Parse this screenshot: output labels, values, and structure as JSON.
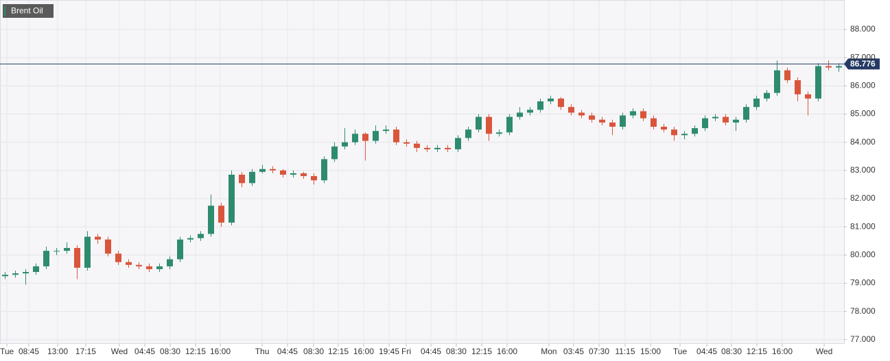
{
  "chart_data": {
    "type": "candlestick",
    "title": "Brent Oil",
    "open": [
      79.25,
      79.3,
      79.35,
      79.4,
      79.6,
      80.15,
      80.15,
      80.25,
      79.55,
      80.65,
      80.55,
      80.05,
      79.75,
      79.65,
      79.6,
      79.5,
      79.6,
      79.85,
      80.55,
      80.6,
      80.75,
      81.75,
      81.15,
      82.85,
      82.55,
      82.95,
      83.05,
      83.0,
      82.85,
      82.9,
      82.8,
      82.65,
      83.4,
      83.85,
      84.0,
      84.3,
      84.05,
      84.4,
      84.45,
      84.0,
      83.95,
      83.8,
      83.75,
      83.8,
      83.75,
      84.15,
      84.45,
      84.9,
      84.3,
      84.35,
      84.9,
      85.05,
      85.15,
      85.45,
      85.55,
      85.25,
      85.05,
      84.95,
      84.8,
      84.7,
      84.55,
      84.95,
      85.1,
      84.85,
      84.55,
      84.45,
      84.25,
      84.3,
      84.5,
      84.85,
      84.9,
      84.7,
      84.8,
      85.25,
      85.55,
      85.75,
      86.55,
      86.2,
      85.7,
      85.55,
      86.7,
      86.65
    ],
    "high": [
      79.4,
      79.45,
      79.5,
      79.7,
      80.3,
      80.25,
      80.45,
      80.35,
      80.85,
      80.75,
      80.65,
      80.15,
      79.85,
      79.75,
      79.7,
      79.7,
      79.95,
      80.65,
      80.7,
      80.85,
      82.15,
      81.85,
      83.0,
      82.95,
      83.05,
      83.2,
      83.15,
      83.05,
      83.0,
      82.95,
      82.9,
      83.5,
      84.0,
      84.5,
      84.45,
      84.35,
      84.6,
      84.6,
      84.55,
      84.1,
      84.05,
      83.9,
      83.9,
      83.9,
      84.25,
      84.55,
      85.0,
      85.0,
      84.45,
      85.0,
      85.25,
      85.25,
      85.55,
      85.65,
      85.6,
      85.35,
      85.15,
      85.05,
      84.9,
      84.8,
      85.05,
      85.2,
      85.2,
      84.95,
      84.65,
      84.55,
      84.4,
      84.6,
      84.95,
      85.0,
      85.0,
      84.9,
      85.35,
      85.65,
      85.85,
      86.9,
      86.65,
      86.3,
      85.8,
      86.8,
      86.9,
      86.8
    ],
    "low": [
      79.15,
      79.2,
      78.95,
      79.3,
      79.5,
      80.0,
      80.05,
      79.15,
      79.45,
      80.4,
      79.95,
      79.65,
      79.55,
      79.5,
      79.4,
      79.4,
      79.5,
      79.75,
      80.45,
      80.5,
      80.65,
      81.0,
      81.05,
      82.4,
      82.45,
      82.9,
      82.9,
      82.75,
      82.75,
      82.7,
      82.5,
      82.55,
      83.3,
      83.75,
      83.9,
      83.35,
      83.95,
      84.3,
      83.9,
      83.85,
      83.65,
      83.65,
      83.65,
      83.65,
      83.65,
      84.05,
      84.35,
      84.05,
      84.2,
      84.25,
      84.8,
      84.95,
      85.05,
      85.35,
      85.15,
      84.95,
      84.85,
      84.7,
      84.6,
      84.25,
      84.45,
      84.85,
      84.75,
      84.45,
      84.35,
      84.05,
      84.1,
      84.2,
      84.4,
      84.75,
      84.6,
      84.4,
      84.7,
      85.15,
      85.45,
      85.65,
      86.1,
      85.45,
      84.95,
      85.45,
      86.55,
      86.5
    ],
    "close": [
      79.3,
      79.35,
      79.4,
      79.6,
      80.15,
      80.15,
      80.25,
      79.55,
      80.65,
      80.55,
      80.05,
      79.75,
      79.65,
      79.6,
      79.5,
      79.6,
      79.85,
      80.55,
      80.6,
      80.75,
      81.75,
      81.15,
      82.85,
      82.55,
      82.95,
      83.05,
      83.0,
      82.85,
      82.9,
      82.8,
      82.65,
      83.4,
      83.85,
      84.0,
      84.3,
      84.05,
      84.4,
      84.45,
      84.0,
      83.95,
      83.8,
      83.75,
      83.8,
      83.75,
      84.15,
      84.45,
      84.9,
      84.3,
      84.35,
      84.9,
      85.05,
      85.15,
      85.45,
      85.55,
      85.25,
      85.05,
      84.95,
      84.8,
      84.7,
      84.55,
      84.95,
      85.1,
      84.85,
      84.55,
      84.45,
      84.25,
      84.3,
      84.5,
      84.85,
      84.9,
      84.7,
      84.8,
      85.25,
      85.55,
      85.75,
      86.55,
      86.2,
      85.7,
      85.55,
      86.7,
      86.65,
      86.7
    ],
    "up_color": "#2e8b6e",
    "down_color": "#d9553b",
    "last_price": 86.776,
    "last_price_color": "#253a64",
    "xlim": [
      0,
      82
    ],
    "xticks": [
      {
        "value": 0.67,
        "label": "Tue"
      },
      {
        "value": 2.8,
        "label": "08:45"
      },
      {
        "value": 5.6,
        "label": "13:00"
      },
      {
        "value": 8.33,
        "label": "17:15"
      },
      {
        "value": 11.6,
        "label": "Wed"
      },
      {
        "value": 14.07,
        "label": "04:45"
      },
      {
        "value": 16.53,
        "label": "08:30"
      },
      {
        "value": 19,
        "label": "12:15"
      },
      {
        "value": 21.4,
        "label": "16:00"
      },
      {
        "value": 25.47,
        "label": "Thu"
      },
      {
        "value": 27.93,
        "label": "04:45"
      },
      {
        "value": 30.47,
        "label": "08:30"
      },
      {
        "value": 32.87,
        "label": "12:15"
      },
      {
        "value": 35.33,
        "label": "16:00"
      },
      {
        "value": 37.8,
        "label": "19:45"
      },
      {
        "value": 39.47,
        "label": "Fri"
      },
      {
        "value": 41.87,
        "label": "04:45"
      },
      {
        "value": 44.33,
        "label": "08:30"
      },
      {
        "value": 46.8,
        "label": "12:15"
      },
      {
        "value": 49.27,
        "label": "16:00"
      },
      {
        "value": 53.33,
        "label": "Mon"
      },
      {
        "value": 55.73,
        "label": "03:45"
      },
      {
        "value": 58.2,
        "label": "07:30"
      },
      {
        "value": 60.73,
        "label": "11:15"
      },
      {
        "value": 63.2,
        "label": "15:00"
      },
      {
        "value": 66.07,
        "label": "Tue"
      },
      {
        "value": 68.67,
        "label": "04:45"
      },
      {
        "value": 71.07,
        "label": "08:30"
      },
      {
        "value": 73.53,
        "label": "12:15"
      },
      {
        "value": 76,
        "label": "16:00"
      },
      {
        "value": 80.07,
        "label": "Wed"
      }
    ],
    "ylim": [
      76.85,
      89.02
    ],
    "yticks": [
      {
        "value": 77,
        "label": "77.000"
      },
      {
        "value": 78,
        "label": "78.000"
      },
      {
        "value": 79,
        "label": "79.000"
      },
      {
        "value": 80,
        "label": "80.000"
      },
      {
        "value": 81,
        "label": "81.000"
      },
      {
        "value": 82,
        "label": "82.000"
      },
      {
        "value": 83,
        "label": "83.000"
      },
      {
        "value": 84,
        "label": "84.000"
      },
      {
        "value": 85,
        "label": "85.000"
      },
      {
        "value": 86,
        "label": "86.000"
      },
      {
        "value": 87,
        "label": "87.000"
      },
      {
        "value": 88,
        "label": "88.000"
      }
    ],
    "grid": true
  }
}
